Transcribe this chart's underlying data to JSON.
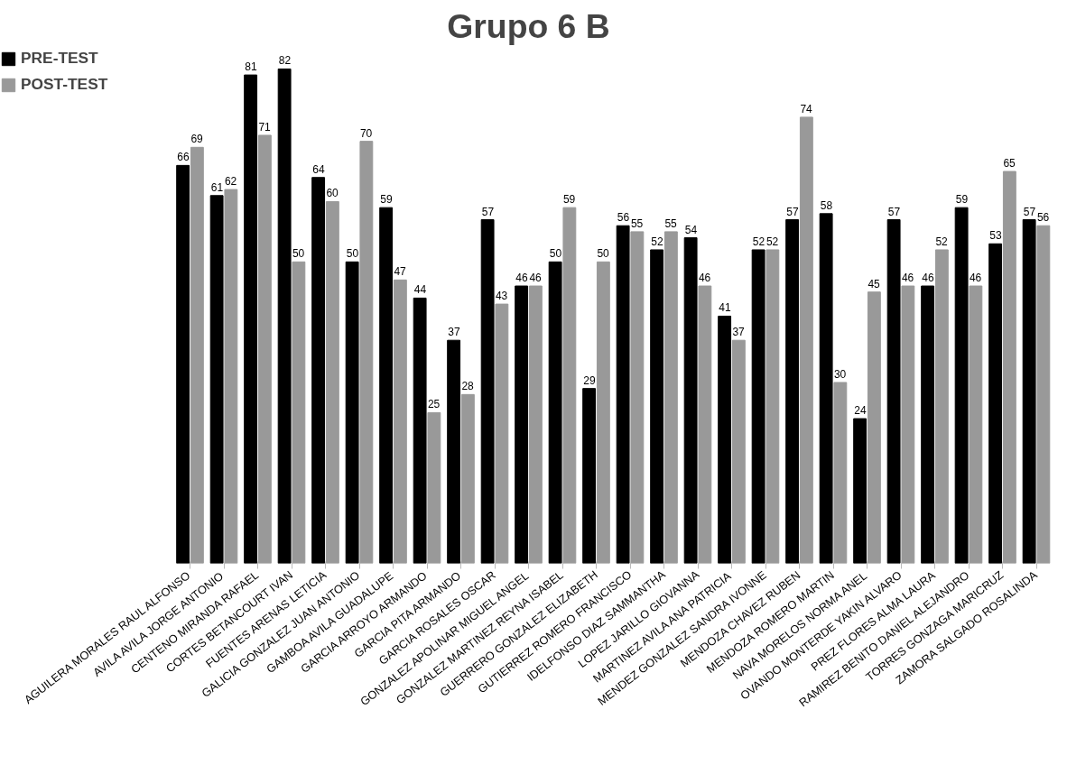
{
  "chart_data": {
    "type": "bar",
    "title": "Grupo 6 B",
    "categories": [
      "AGUILERA MORALES RAUL ALFONSO",
      "AVILA AVILA JORGE ANTONIO",
      "CENTENO MIRANDA RAFAEL",
      "CORTES BETANCOURT IVAN",
      "FUENTES ARENAS LETICIA",
      "GALICIA GONZALEZ JUAN ANTONIO",
      "GAMBOA AVILA GUADALUPE",
      "GARCIA ARROYO ARMANDO",
      "GARCIA PITA ARMANDO",
      "GARCIA ROSALES OSCAR",
      "GONZALEZ APOLINAR MIGUEL ANGEL",
      "GONZALEZ MARTINEZ REYNA ISABEL",
      "GUERRERO GONZALEZ ELIZABETH",
      "GUTIERREZ ROMERO FRANCISCO",
      "IDELFONSO DIAZ SAMMANTHA",
      "LOPEZ JARILLO GIOVANNA",
      "MARTINEZ AVILA ANA PATRICIA",
      "MENDEZ GONZALEZ SANDRA IVONNE",
      "MENDOZA CHAVEZ RUBEN",
      "MENDOZA ROMERO MARTIN",
      "NAVA MORELOS NORMA ANEL",
      "OVANDO MONTERDE YAKIN ALVARO",
      "PREZ FLORES ALMA LAURA",
      "RAMIREZ BENITO DANIEL ALEJANDRO",
      "TORRES GONZAGA MARICRUZ",
      "ZAMORA SALGADO ROSALINDA"
    ],
    "series": [
      {
        "name": "PRE-TEST",
        "color": "#000000",
        "values": [
          66,
          61,
          81,
          82,
          64,
          50,
          59,
          44,
          37,
          57,
          46,
          50,
          29,
          56,
          52,
          54,
          41,
          52,
          57,
          58,
          24,
          57,
          46,
          59,
          53,
          57
        ]
      },
      {
        "name": "POST-TEST",
        "color": "#999999",
        "values": [
          69,
          62,
          71,
          50,
          60,
          70,
          47,
          25,
          28,
          43,
          46,
          59,
          50,
          55,
          55,
          46,
          37,
          52,
          74,
          30,
          45,
          46,
          52,
          46,
          65,
          56
        ]
      }
    ],
    "tick_labels": "x",
    "data_labels": true,
    "legend": "top left",
    "grid": false
  }
}
